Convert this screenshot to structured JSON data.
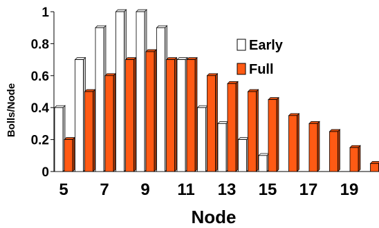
{
  "chart_data": {
    "type": "bar",
    "title": "",
    "xlabel": "Node",
    "ylabel": "Bolls/Node",
    "ylim": [
      0,
      1
    ],
    "yticks": [
      "0",
      "0.2",
      "0.4",
      "0.6",
      "0.8",
      "1"
    ],
    "xticks": [
      "5",
      "7",
      "9",
      "11",
      "13",
      "15",
      "17",
      "19"
    ],
    "categories": [
      5,
      6,
      7,
      8,
      9,
      10,
      11,
      12,
      13,
      14,
      15,
      16,
      17,
      18,
      19,
      20
    ],
    "series": [
      {
        "name": "Early",
        "color": "#ffffff",
        "values": [
          0.4,
          0.7,
          0.9,
          1.0,
          1.0,
          0.9,
          0.7,
          0.4,
          0.3,
          0.2,
          0.1,
          0,
          0,
          0,
          0,
          0
        ]
      },
      {
        "name": "Full",
        "color": "#ff5a14",
        "values": [
          0.2,
          0.5,
          0.6,
          0.7,
          0.75,
          0.7,
          0.7,
          0.6,
          0.55,
          0.5,
          0.45,
          0.35,
          0.3,
          0.25,
          0.15,
          0.05
        ]
      }
    ],
    "legend_position": "right",
    "grid": false,
    "style": "3d-bars"
  }
}
